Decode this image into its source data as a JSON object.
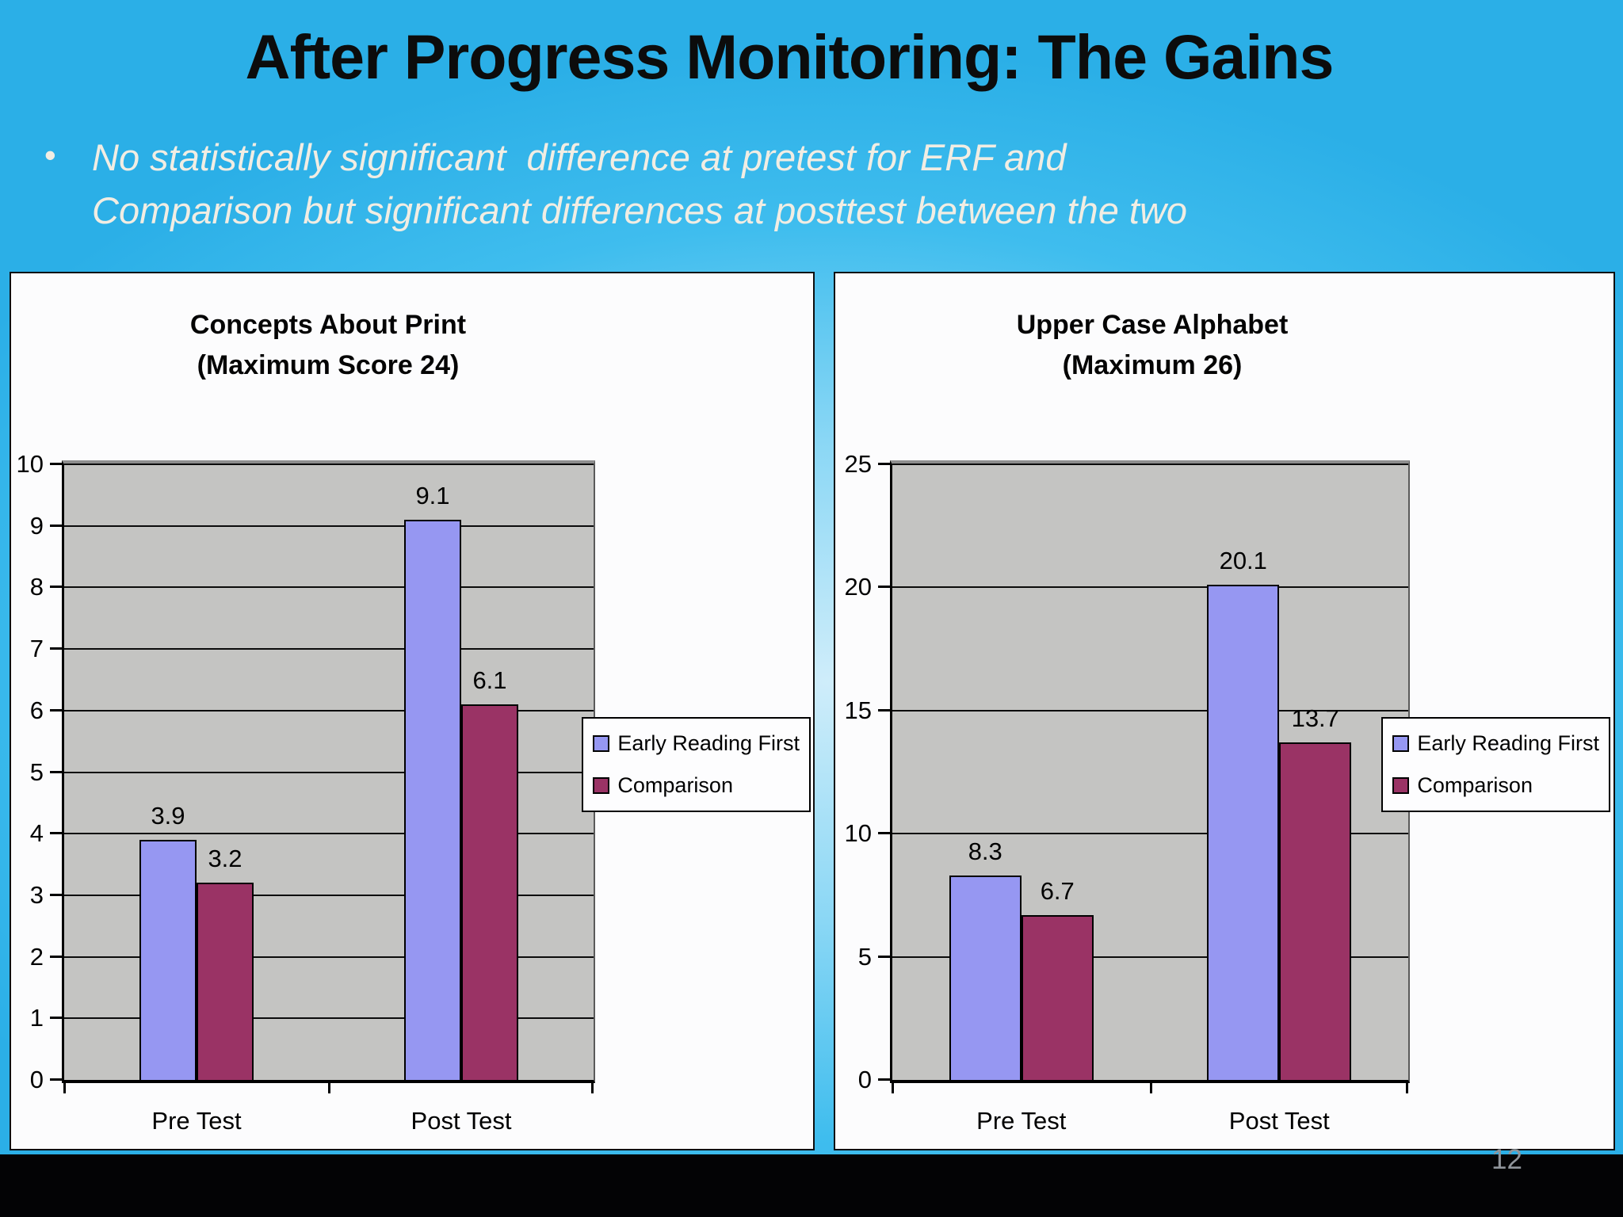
{
  "slide": {
    "title": "After Progress Monitoring: The Gains",
    "bullet": {
      "line1": "No statistically significant  difference at pretest for ERF and",
      "line2": "Comparison but significant differences at posttest between the two"
    },
    "page_number": "12"
  },
  "colors": {
    "background_edge": "#2BAFE7",
    "background_center": "#CFEDFA",
    "title_text": "#0C0C0C",
    "bullet_text": "#F1EDE3",
    "panel_background": "#FCFCFD",
    "plot_background": "#C4C4C2",
    "series_early_reading_first": "#9697F2",
    "series_comparison": "#9A3365",
    "bottom_bar": "#030305",
    "page_number_text": "#8F949A"
  },
  "chart_data": [
    {
      "type": "bar",
      "title": "Concepts About Print",
      "subtitle": "(Maximum Score 24)",
      "categories": [
        "Pre Test",
        "Post Test"
      ],
      "series": [
        {
          "name": "Early Reading First",
          "color": "#9697F2",
          "values": [
            3.9,
            9.1
          ]
        },
        {
          "name": "Comparison",
          "color": "#9A3365",
          "values": [
            3.2,
            6.1
          ]
        }
      ],
      "ylim": [
        0,
        10
      ],
      "ytick_step": 1,
      "grid": true,
      "legend_position": "right"
    },
    {
      "type": "bar",
      "title": "Upper Case Alphabet",
      "subtitle": "(Maximum 26)",
      "categories": [
        "Pre Test",
        "Post Test"
      ],
      "series": [
        {
          "name": "Early Reading First",
          "color": "#9697F2",
          "values": [
            8.3,
            20.1
          ]
        },
        {
          "name": "Comparison",
          "color": "#9A3365",
          "values": [
            6.7,
            13.7
          ]
        }
      ],
      "ylim": [
        0,
        25
      ],
      "ytick_step": 5,
      "grid": true,
      "legend_position": "right"
    }
  ]
}
